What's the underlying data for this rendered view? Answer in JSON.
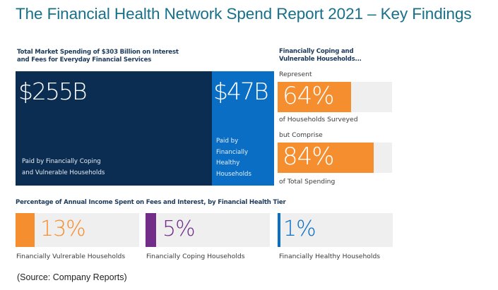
{
  "title": "The Financial Health Network Spend Report 2021 – Key Findings",
  "colors": {
    "title": "#17708a",
    "navy": "#0b2d52",
    "blue": "#0a6fc4",
    "orange": "#f58e2f",
    "purple": "#712d87",
    "track": "#efefef"
  },
  "market_spending": {
    "header_line1": "Total Market Spending of $303 Billion on Interest",
    "header_line2": "and Fees for Everyday Financial Services",
    "total_billion": 303,
    "segments": [
      {
        "value_label": "$255B",
        "value_billion": 255,
        "caption_line1": "Paid by Financially Coping",
        "caption_line2": "and Vulnerable Households"
      },
      {
        "value_label": "$47B",
        "value_billion": 47,
        "caption_lines": [
          "Paid by",
          "Financially",
          "Healthy",
          "Households"
        ]
      }
    ]
  },
  "coping_vulnerable": {
    "header_line1": "Financially Coping and",
    "header_line2": "Vulnerable Households...",
    "stats": [
      {
        "pre_label": "Represent",
        "value_label": "64%",
        "percent": 64,
        "post_label": "of Households Surveyed"
      },
      {
        "pre_label": "but Comprise",
        "value_label": "84%",
        "percent": 84,
        "post_label": "of Total Spending"
      }
    ]
  },
  "income_share": {
    "header": "Percentage of Annual Income Spent on Fees and Interest, by Financial Health Tier",
    "tiers": [
      {
        "value_label": "13%",
        "percent": 13,
        "label": "Financially Vulrerable Households",
        "color": "#f58e2f"
      },
      {
        "value_label": "5%",
        "percent": 5,
        "label": "Financially Coping Households",
        "color": "#712d87"
      },
      {
        "value_label": "1%",
        "percent": 1,
        "label": "Financially Healthy Households",
        "color": "#0a6fc4"
      }
    ]
  },
  "source": "(Source: Company Reports)"
}
